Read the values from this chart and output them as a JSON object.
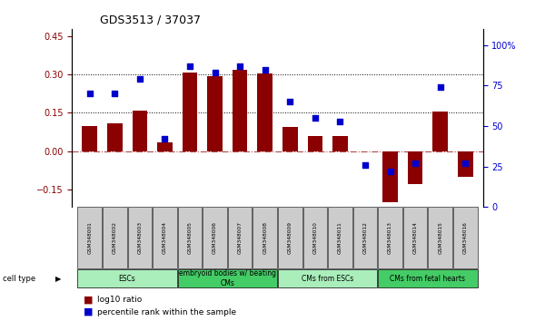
{
  "title": "GDS3513 / 37037",
  "samples": [
    "GSM348001",
    "GSM348002",
    "GSM348003",
    "GSM348004",
    "GSM348005",
    "GSM348006",
    "GSM348007",
    "GSM348008",
    "GSM348009",
    "GSM348010",
    "GSM348011",
    "GSM348012",
    "GSM348013",
    "GSM348014",
    "GSM348015",
    "GSM348016"
  ],
  "log10_ratio": [
    0.1,
    0.11,
    0.16,
    0.035,
    0.31,
    0.295,
    0.32,
    0.305,
    0.095,
    0.06,
    0.06,
    0.0,
    -0.2,
    -0.13,
    0.155,
    -0.1
  ],
  "percentile_rank": [
    70,
    70,
    79,
    42,
    87,
    83,
    87,
    85,
    65,
    55,
    53,
    26,
    22,
    27,
    74,
    27
  ],
  "bar_color": "#8B0000",
  "dot_color": "#0000CD",
  "cell_type_groups": [
    {
      "label": "ESCs",
      "start": 0,
      "end": 3,
      "color": "#AAEEBB"
    },
    {
      "label": "embryoid bodies w/ beating\nCMs",
      "start": 4,
      "end": 7,
      "color": "#44CC66"
    },
    {
      "label": "CMs from ESCs",
      "start": 8,
      "end": 11,
      "color": "#AAEEBB"
    },
    {
      "label": "CMs from fetal hearts",
      "start": 12,
      "end": 15,
      "color": "#44CC66"
    }
  ],
  "ylim_left": [
    -0.22,
    0.48
  ],
  "ylim_right": [
    0,
    110
  ],
  "yticks_left": [
    -0.15,
    0.0,
    0.15,
    0.3,
    0.45
  ],
  "yticks_right": [
    0,
    25,
    50,
    75,
    100
  ],
  "hlines": [
    0.0,
    0.15,
    0.3
  ],
  "background_color": "#ffffff",
  "legend_items": [
    {
      "label": "log10 ratio",
      "color": "#8B0000"
    },
    {
      "label": "percentile rank within the sample",
      "color": "#0000CD"
    }
  ]
}
